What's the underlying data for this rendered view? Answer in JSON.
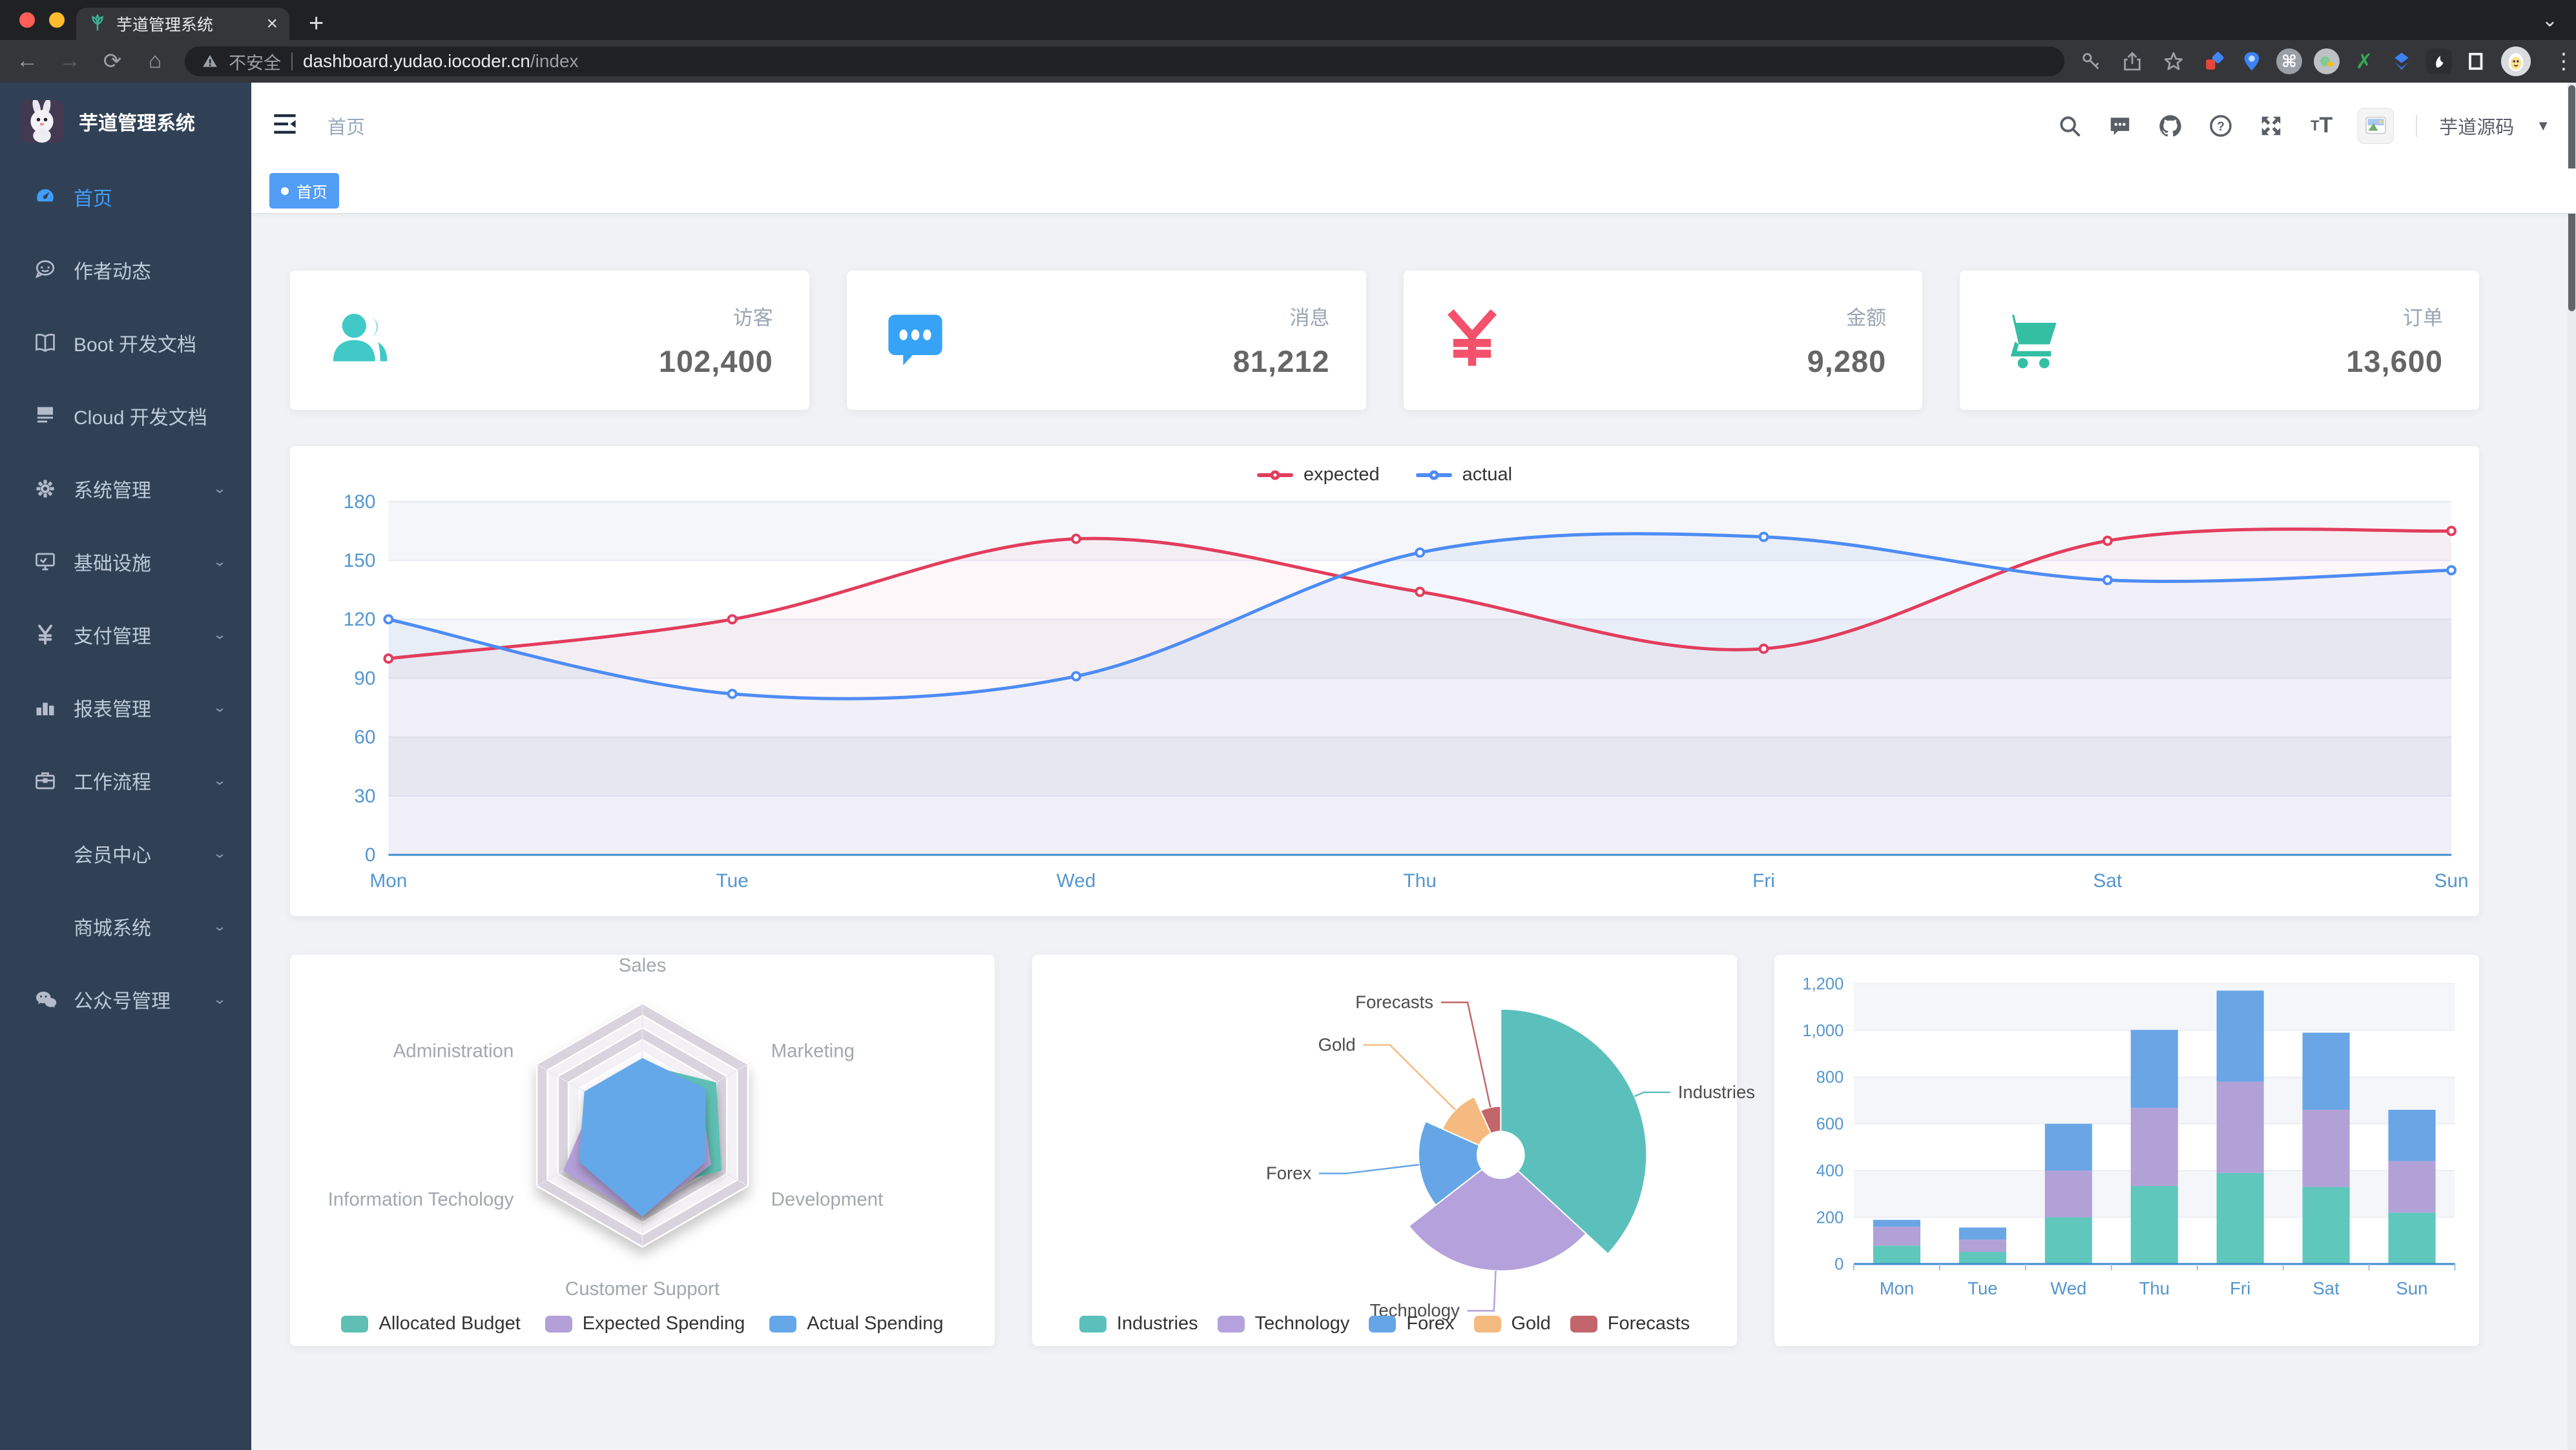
{
  "browser": {
    "tab_title": "芋道管理系统",
    "tab_close": "×",
    "new_tab": "+",
    "tab_chevron": "⌄",
    "security_label": "不安全",
    "url_host": "dashboard.yudao.iocoder.cn",
    "url_path": "/index",
    "menu_dots": "⋮",
    "traffic_colors": [
      "#ff5f57",
      "#febc2e",
      "#28c840"
    ]
  },
  "sidebar": {
    "logo_title": "芋道管理系统",
    "items": [
      {
        "label": "首页",
        "icon": "dashboard-icon",
        "active": true,
        "arrow": false
      },
      {
        "label": "作者动态",
        "icon": "author-icon",
        "active": false,
        "arrow": false
      },
      {
        "label": "Boot 开发文档",
        "icon": "book-icon",
        "active": false,
        "arrow": false
      },
      {
        "label": "Cloud 开发文档",
        "icon": "document-icon",
        "active": false,
        "arrow": false
      },
      {
        "label": "系统管理",
        "icon": "gear-icon",
        "active": false,
        "arrow": true
      },
      {
        "label": "基础设施",
        "icon": "monitor-icon",
        "active": false,
        "arrow": true
      },
      {
        "label": "支付管理",
        "icon": "yen-icon",
        "active": false,
        "arrow": true
      },
      {
        "label": "报表管理",
        "icon": "barchart-icon",
        "active": false,
        "arrow": true
      },
      {
        "label": "工作流程",
        "icon": "briefcase-icon",
        "active": false,
        "arrow": true
      },
      {
        "label": "会员中心",
        "icon": null,
        "active": false,
        "arrow": true
      },
      {
        "label": "商城系统",
        "icon": null,
        "active": false,
        "arrow": true
      },
      {
        "label": "公众号管理",
        "icon": "wechat-icon",
        "active": false,
        "arrow": true
      }
    ]
  },
  "header": {
    "breadcrumb": "首页",
    "user_name": "芋道源码",
    "icons": [
      "search-icon",
      "message-icon",
      "github-icon",
      "help-icon",
      "fullscreen-icon",
      "fontsize-icon",
      "avatar"
    ]
  },
  "tags_view": {
    "active_tag": "首页",
    "active_color": "#529df6"
  },
  "stats": [
    {
      "label": "访客",
      "value": "102,400",
      "icon": "peoples-icon",
      "color": "#40c9c6"
    },
    {
      "label": "消息",
      "value": "81,212",
      "icon": "bubble-icon",
      "color": "#36a3f7"
    },
    {
      "label": "金额",
      "value": "9,280",
      "icon": "money-icon",
      "color": "#f4516c"
    },
    {
      "label": "订单",
      "value": "13,600",
      "icon": "shopping-icon",
      "color": "#34bfa3"
    }
  ],
  "chart_data": [
    {
      "type": "line",
      "categories": [
        "Mon",
        "Tue",
        "Wed",
        "Thu",
        "Fri",
        "Sat",
        "Sun"
      ],
      "ylim": [
        0,
        180
      ],
      "ytick_step": 30,
      "axis_color": "#5596cf",
      "grid": true,
      "legend_position": "top",
      "series": [
        {
          "name": "expected",
          "color": "#E23D5D",
          "fill": "rgba(226,61,93,0.04)",
          "values": [
            100,
            120,
            161,
            134,
            105,
            160,
            165
          ]
        },
        {
          "name": "actual",
          "color": "#4D8CF5",
          "fill": "rgba(77,140,245,0.07)",
          "values": [
            120,
            82,
            91,
            154,
            162,
            140,
            145
          ]
        }
      ]
    },
    {
      "type": "radar",
      "legend_position": "bottom",
      "indicators": [
        {
          "name": "Sales",
          "max": 10000
        },
        {
          "name": "Administration",
          "max": 20000
        },
        {
          "name": "Information Techology",
          "max": 20000
        },
        {
          "name": "Customer Support",
          "max": 20000
        },
        {
          "name": "Development",
          "max": 20000
        },
        {
          "name": "Marketing",
          "max": 20000
        }
      ],
      "series": [
        {
          "name": "Allocated Budget",
          "color": "#5FBFB4",
          "values": [
            5000,
            7000,
            12000,
            11000,
            15000,
            14000
          ]
        },
        {
          "name": "Expected Spending",
          "color": "#B3A0D8",
          "values": [
            4000,
            9000,
            15000,
            15000,
            13000,
            11000
          ]
        },
        {
          "name": "Actual Spending",
          "color": "#65A8E9",
          "values": [
            5500,
            11000,
            12000,
            15000,
            12000,
            12000
          ]
        }
      ]
    },
    {
      "type": "pie",
      "legend_position": "bottom",
      "labels": [
        "Industries",
        "Technology",
        "Forex",
        "Gold",
        "Forecasts"
      ],
      "values": [
        320,
        240,
        149,
        100,
        59
      ],
      "colors": [
        "#5BC0BC",
        "#B5A2DC",
        "#66A6E6",
        "#F5BA7F",
        "#C2666B"
      ]
    },
    {
      "type": "bar",
      "stacked": true,
      "categories": [
        "Mon",
        "Tue",
        "Wed",
        "Thu",
        "Fri",
        "Sat",
        "Sun"
      ],
      "ylim": [
        0,
        1200
      ],
      "ytick_step": 200,
      "axis_color": "#5596cf",
      "series": [
        {
          "color": "#60C7BD",
          "values": [
            79,
            52,
            200,
            334,
            390,
            330,
            220
          ]
        },
        {
          "color": "#B2A1D7",
          "values": [
            80,
            52,
            200,
            334,
            390,
            330,
            220
          ]
        },
        {
          "color": "#6AA6E6",
          "values": [
            30,
            52,
            200,
            334,
            390,
            330,
            220
          ]
        }
      ]
    }
  ]
}
